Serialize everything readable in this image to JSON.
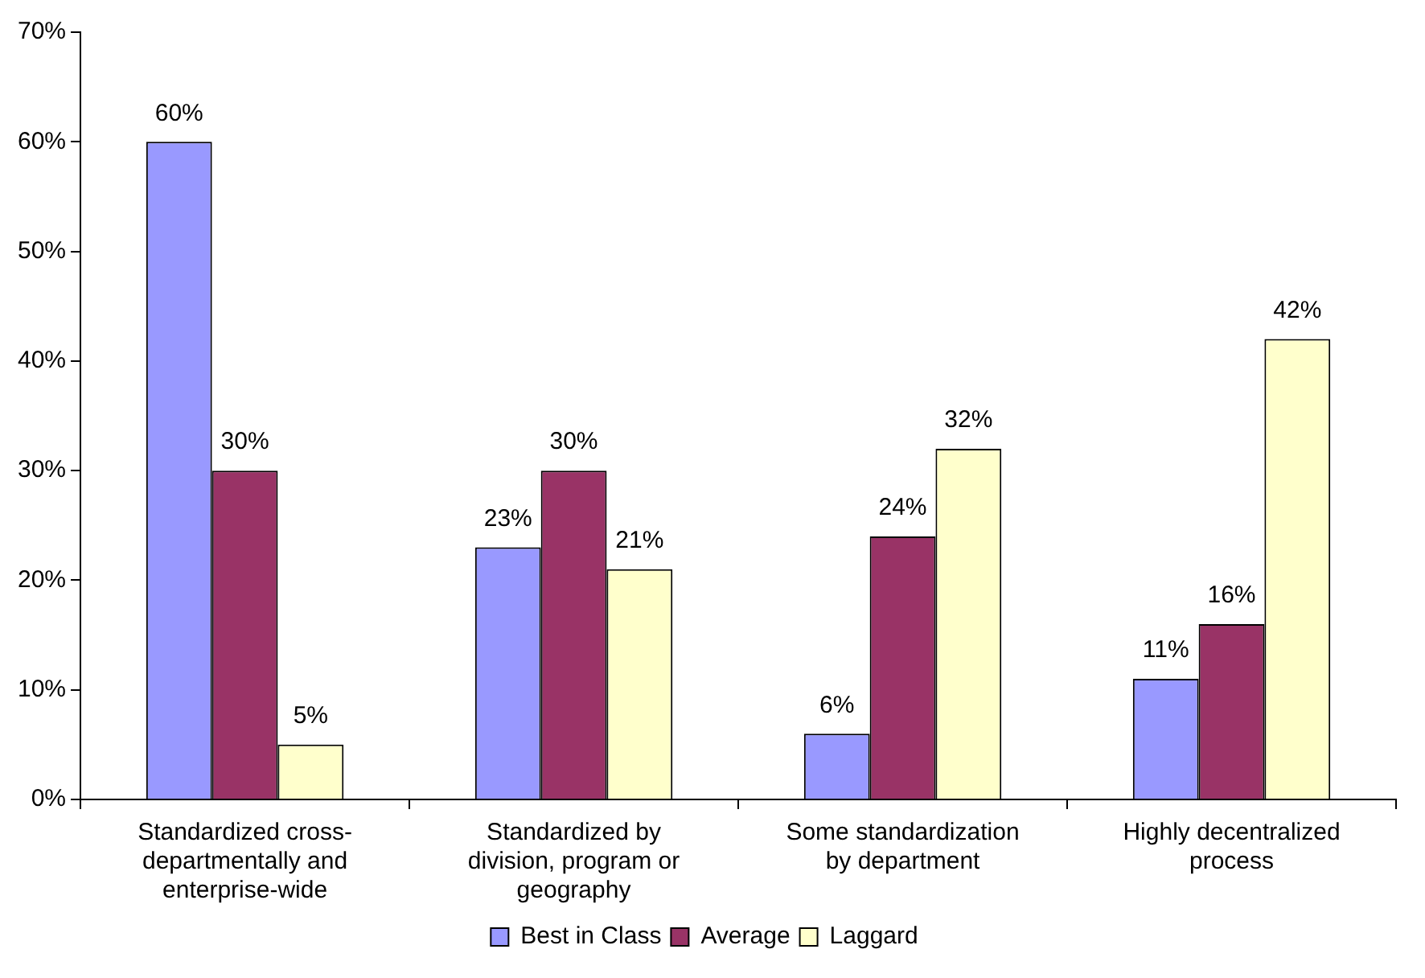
{
  "chart_data": {
    "type": "bar",
    "categories": [
      "Standardized cross-departmentally and enterprise-wide",
      "Standardized by division, program or geography",
      "Some standardization by department",
      "Highly decentralized process"
    ],
    "series": [
      {
        "name": "Best in Class",
        "color": "#9999ff",
        "values": [
          60,
          23,
          6,
          11
        ],
        "value_labels": [
          "60%",
          "23%",
          "6%",
          "11%"
        ]
      },
      {
        "name": "Average",
        "color": "#993366",
        "values": [
          30,
          30,
          24,
          16
        ],
        "value_labels": [
          "30%",
          "30%",
          "24%",
          "16%"
        ]
      },
      {
        "name": "Laggard",
        "color": "#ffffcc",
        "values": [
          5,
          21,
          32,
          42
        ],
        "value_labels": [
          "5%",
          "21%",
          "32%",
          "42%"
        ]
      }
    ],
    "ylim": [
      0,
      70
    ],
    "yticks": [
      {
        "value": 0,
        "label": "0%"
      },
      {
        "value": 10,
        "label": "10%"
      },
      {
        "value": 20,
        "label": "20%"
      },
      {
        "value": 30,
        "label": "30%"
      },
      {
        "value": 40,
        "label": "40%"
      },
      {
        "value": 50,
        "label": "50%"
      },
      {
        "value": 60,
        "label": "60%"
      },
      {
        "value": 70,
        "label": "70%"
      }
    ],
    "grid": false,
    "legend": "bottom"
  }
}
